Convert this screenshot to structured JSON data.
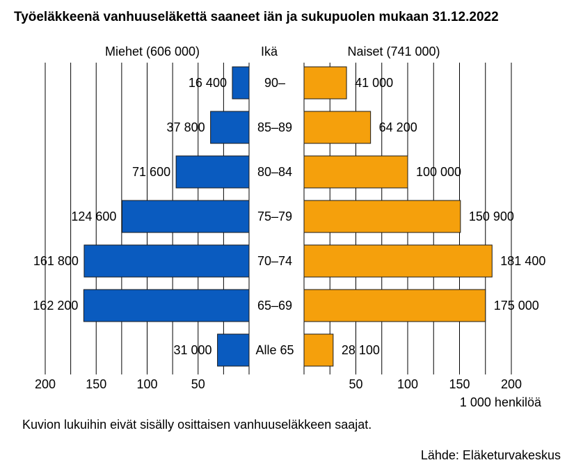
{
  "chart_data": {
    "type": "bar",
    "orientation": "horizontal-butterfly",
    "title": "Työeläkkeenä vanhuuseläkettä saaneet iän ja sukupuolen mukaan 31.12.2022",
    "center_header": "Ikä",
    "categories": [
      "90–",
      "85–89",
      "80–84",
      "75–79",
      "70–74",
      "65–69",
      "Alle 65"
    ],
    "series": [
      {
        "name": "Miehet (606 000)",
        "side": "left",
        "color": "#0a5bbf",
        "values": [
          16400,
          37800,
          71600,
          124600,
          161800,
          162200,
          31000
        ],
        "value_labels": [
          "16 400",
          "37 800",
          "71 600",
          "124 600",
          "161 800",
          "162 200",
          "31 000"
        ]
      },
      {
        "name": "Naiset (741 000)",
        "side": "right",
        "color": "#f5a00c",
        "values": [
          41000,
          64200,
          100000,
          150900,
          181400,
          175000,
          28100
        ],
        "value_labels": [
          "41 000",
          "64 200",
          "100 000",
          "150 900",
          "181 400",
          "175 000",
          "28 100"
        ]
      }
    ],
    "axis": {
      "unit": 1000,
      "range": [
        0,
        200
      ],
      "left_ticks": [
        {
          "value": 200,
          "label": "200"
        },
        {
          "value": 150,
          "label": "150"
        },
        {
          "value": 100,
          "label": "100"
        },
        {
          "value": 50,
          "label": "50"
        }
      ],
      "right_ticks": [
        {
          "value": 50,
          "label": "50"
        },
        {
          "value": 100,
          "label": "100"
        },
        {
          "value": 150,
          "label": "150"
        },
        {
          "value": 200,
          "label": "200"
        }
      ],
      "gridlines_at": [
        25,
        50,
        75,
        100,
        125,
        150,
        175,
        200
      ],
      "xlabel": "1 000 henkilöä"
    },
    "footnote": "Kuvion lukuihin eivät sisälly osittaisen vanhuuseläkkeen saajat.",
    "source": "Lähde: Eläketurvakeskus"
  }
}
